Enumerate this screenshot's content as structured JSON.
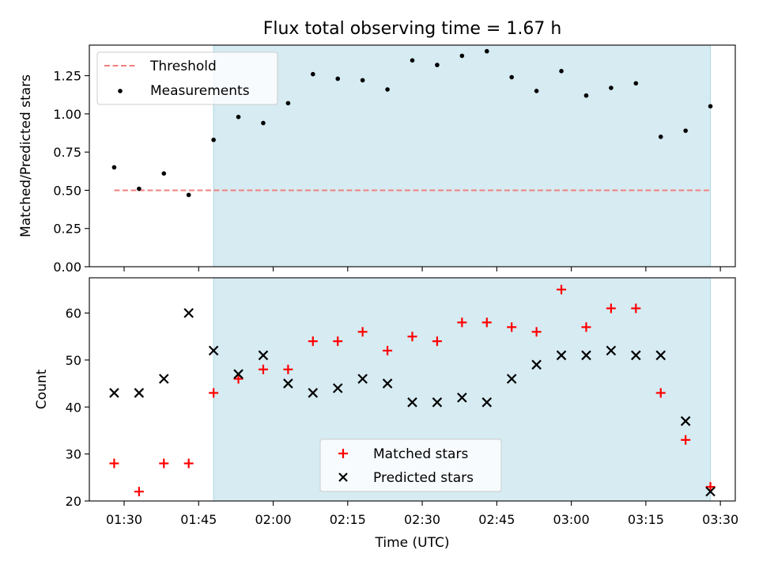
{
  "chart_data": [
    {
      "type": "scatter",
      "title": "Flux total observing time = 1.67 h",
      "xlabel": "",
      "ylabel": "Matched/Predicted stars",
      "ylim": [
        0,
        1.45
      ],
      "yticks": [
        "0.00",
        "0.25",
        "0.50",
        "0.75",
        "1.00",
        "1.25"
      ],
      "shaded_region": {
        "start": "01:48",
        "end": "03:28",
        "color": "#add8e6"
      },
      "threshold": {
        "name": "Threshold",
        "value": 0.5,
        "x_start": "01:28",
        "x_end": "03:28",
        "color": "#f08080"
      },
      "legend_position": "upper-left",
      "legend": [
        "Threshold",
        "Measurements"
      ],
      "series": [
        {
          "name": "Measurements",
          "marker": "dot",
          "color": "#000000",
          "points": [
            [
              "01:28",
              0.65
            ],
            [
              "01:33",
              0.51
            ],
            [
              "01:38",
              0.61
            ],
            [
              "01:43",
              0.47
            ],
            [
              "01:48",
              0.83
            ],
            [
              "01:53",
              0.98
            ],
            [
              "01:58",
              0.94
            ],
            [
              "02:03",
              1.07
            ],
            [
              "02:08",
              1.26
            ],
            [
              "02:13",
              1.23
            ],
            [
              "02:18",
              1.22
            ],
            [
              "02:23",
              1.16
            ],
            [
              "02:28",
              1.35
            ],
            [
              "02:33",
              1.32
            ],
            [
              "02:38",
              1.38
            ],
            [
              "02:43",
              1.41
            ],
            [
              "02:48",
              1.24
            ],
            [
              "02:53",
              1.15
            ],
            [
              "02:58",
              1.28
            ],
            [
              "03:03",
              1.12
            ],
            [
              "03:08",
              1.17
            ],
            [
              "03:13",
              1.2
            ],
            [
              "03:18",
              0.85
            ],
            [
              "03:23",
              0.89
            ],
            [
              "03:28",
              1.05
            ]
          ]
        }
      ]
    },
    {
      "type": "scatter",
      "title": "",
      "xlabel": "Time (UTC)",
      "ylabel": "Count",
      "xlim": [
        "01:23",
        "03:33"
      ],
      "xticks": [
        "01:30",
        "01:45",
        "02:00",
        "02:15",
        "02:30",
        "02:45",
        "03:00",
        "03:15",
        "03:30"
      ],
      "ylim": [
        20,
        67.5
      ],
      "yticks": [
        "20",
        "30",
        "40",
        "50",
        "60"
      ],
      "shaded_region": {
        "start": "01:48",
        "end": "03:28",
        "color": "#add8e6"
      },
      "legend_position": "lower-center",
      "legend": [
        "Matched stars",
        "Predicted stars"
      ],
      "series": [
        {
          "name": "Matched stars",
          "marker": "plus",
          "color": "#ff0000",
          "points": [
            [
              "01:28",
              28
            ],
            [
              "01:33",
              22
            ],
            [
              "01:38",
              28
            ],
            [
              "01:43",
              28
            ],
            [
              "01:48",
              43
            ],
            [
              "01:53",
              46
            ],
            [
              "01:58",
              48
            ],
            [
              "02:03",
              48
            ],
            [
              "02:08",
              54
            ],
            [
              "02:13",
              54
            ],
            [
              "02:18",
              56
            ],
            [
              "02:23",
              52
            ],
            [
              "02:28",
              55
            ],
            [
              "02:33",
              54
            ],
            [
              "02:38",
              58
            ],
            [
              "02:43",
              58
            ],
            [
              "02:48",
              57
            ],
            [
              "02:53",
              56
            ],
            [
              "02:58",
              65
            ],
            [
              "03:03",
              57
            ],
            [
              "03:08",
              61
            ],
            [
              "03:13",
              61
            ],
            [
              "03:18",
              43
            ],
            [
              "03:23",
              33
            ],
            [
              "03:28",
              23
            ]
          ]
        },
        {
          "name": "Predicted stars",
          "marker": "x",
          "color": "#000000",
          "points": [
            [
              "01:28",
              43
            ],
            [
              "01:33",
              43
            ],
            [
              "01:38",
              46
            ],
            [
              "01:43",
              60
            ],
            [
              "01:48",
              52
            ],
            [
              "01:53",
              47
            ],
            [
              "01:58",
              51
            ],
            [
              "02:03",
              45
            ],
            [
              "02:08",
              43
            ],
            [
              "02:13",
              44
            ],
            [
              "02:18",
              46
            ],
            [
              "02:23",
              45
            ],
            [
              "02:28",
              41
            ],
            [
              "02:33",
              41
            ],
            [
              "02:38",
              42
            ],
            [
              "02:43",
              41
            ],
            [
              "02:48",
              46
            ],
            [
              "02:53",
              49
            ],
            [
              "02:58",
              51
            ],
            [
              "03:03",
              51
            ],
            [
              "03:08",
              52
            ],
            [
              "03:13",
              51
            ],
            [
              "03:18",
              51
            ],
            [
              "03:23",
              37
            ],
            [
              "03:28",
              22
            ]
          ]
        }
      ]
    }
  ]
}
